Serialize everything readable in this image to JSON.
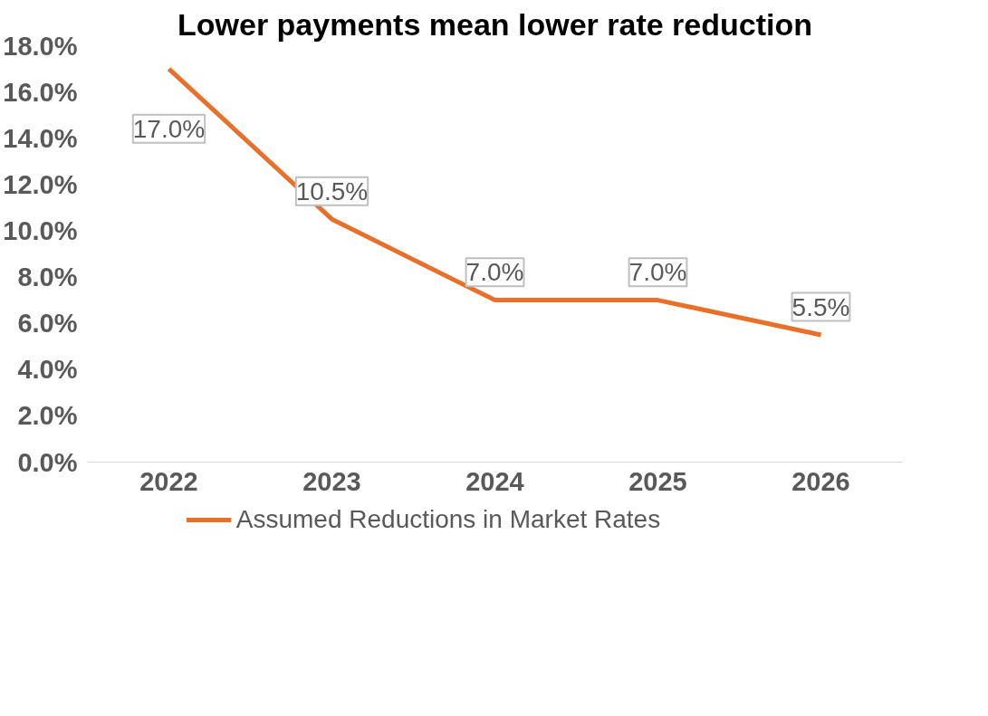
{
  "chart_data": {
    "type": "line",
    "title": "Lower payments mean lower rate reduction",
    "categories": [
      "2022",
      "2023",
      "2024",
      "2025",
      "2026"
    ],
    "series": [
      {
        "name": "Assumed Reductions in Market Rates",
        "color": "#e8702a",
        "values": [
          17.0,
          10.5,
          7.0,
          7.0,
          5.5
        ],
        "value_labels": [
          "17.0%",
          "10.5%",
          "7.0%",
          "7.0%",
          "5.5%"
        ]
      }
    ],
    "ylim": [
      0,
      18
    ],
    "yticks": [
      {
        "value": 0,
        "label": "0.0%"
      },
      {
        "value": 2,
        "label": "2.0%"
      },
      {
        "value": 4,
        "label": "4.0%"
      },
      {
        "value": 6,
        "label": "6.0%"
      },
      {
        "value": 8,
        "label": "8.0%"
      },
      {
        "value": 10,
        "label": "10.0%"
      },
      {
        "value": 12,
        "label": "12.0%"
      },
      {
        "value": 14,
        "label": "14.0%"
      },
      {
        "value": 16,
        "label": "16.0%"
      },
      {
        "value": 18,
        "label": "18.0%"
      }
    ],
    "grid": false,
    "legend": "bottom",
    "marker": "none",
    "line_style": "solid"
  }
}
